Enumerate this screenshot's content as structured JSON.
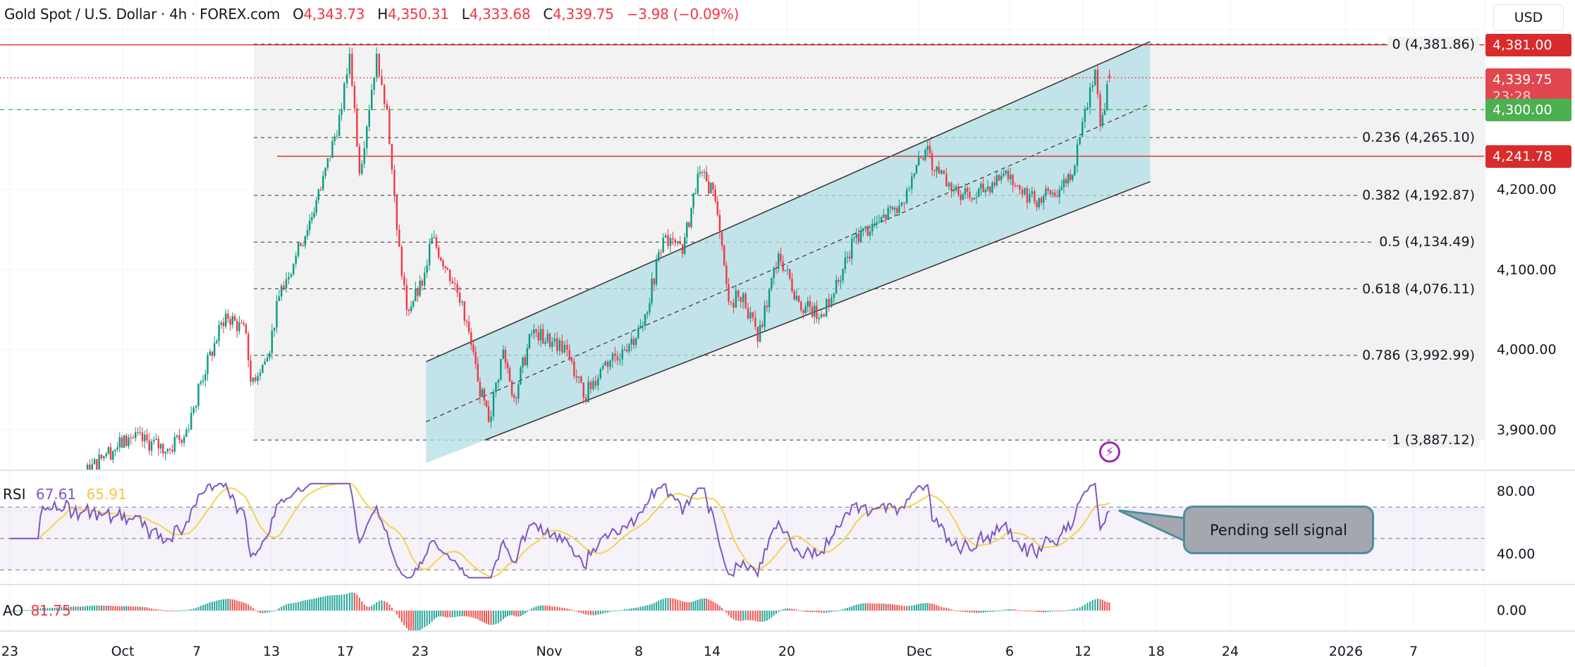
{
  "header": {
    "symbol": "Gold Spot / U.S. Dollar · 4h · FOREX.com",
    "open_label": "O",
    "open": "4,343.73",
    "high_label": "H",
    "high": "4,350.31",
    "low_label": "L",
    "low": "4,333.68",
    "close_label": "C",
    "close": "4,339.75",
    "change": "−3.98 (−0.09%)"
  },
  "currency_button": "USD",
  "colors": {
    "up": "#089981",
    "down": "#f23645",
    "rsi": "#7e57c2",
    "rsi_ma": "#f5d34f",
    "channel": "#b2dde6",
    "fib_bg": "#f2f2f2",
    "tag_red": "#d92b2b",
    "tag_last": "#e0474f",
    "tag_green": "#4caf50"
  },
  "price_axis": {
    "labels": [
      {
        "value": 4200,
        "text": "4,200.00"
      },
      {
        "value": 4100,
        "text": "4,100.00"
      },
      {
        "value": 4000,
        "text": "4,000.00"
      },
      {
        "value": 3900,
        "text": "3,900.00"
      }
    ],
    "tags": [
      {
        "value": 4381.0,
        "text": "4,381.00",
        "color": "#d92b2b"
      },
      {
        "value": 4339.75,
        "text": "4,339.75",
        "countdown": "23:28",
        "color": "#e0474f"
      },
      {
        "value": 4300.0,
        "text": "4,300.00",
        "color": "#4caf50"
      },
      {
        "value": 4241.78,
        "text": "4,241.78",
        "color": "#d92b2b"
      }
    ]
  },
  "fib_levels": [
    {
      "ratio": "0",
      "price": 4381.86,
      "text": "0 (4,381.86)"
    },
    {
      "ratio": "0.236",
      "price": 4265.1,
      "text": "0.236 (4,265.10)"
    },
    {
      "ratio": "0.382",
      "price": 4192.87,
      "text": "0.382 (4,192.87)"
    },
    {
      "ratio": "0.5",
      "price": 4134.49,
      "text": "0.5 (4,134.49)"
    },
    {
      "ratio": "0.618",
      "price": 4076.11,
      "text": "0.618 (4,076.11)"
    },
    {
      "ratio": "0.786",
      "price": 3992.99,
      "text": "0.786 (3,992.99)"
    },
    {
      "ratio": "1",
      "price": 3887.12,
      "text": "1 (3,887.12)"
    }
  ],
  "horizontal_lines": [
    {
      "price": 4381.0,
      "style": "solid",
      "color": "#d92b2b"
    },
    {
      "price": 4241.78,
      "style": "solid",
      "color": "#d92b2b"
    },
    {
      "price": 4339.75,
      "style": "dotted",
      "color": "#f23645"
    },
    {
      "price": 4300.0,
      "style": "dashed",
      "color": "#4caf50"
    }
  ],
  "chart_data": {
    "type": "candlestick",
    "title": "Gold Spot / U.S. Dollar · 4h · FOREX.com",
    "ylim": [
      3788,
      4440
    ],
    "grid": true,
    "price_path": [
      [
        "2025-09-22T16:00",
        3750
      ],
      [
        "2025-09-29T20:00",
        3870
      ],
      [
        "2025-10-01T16:00",
        3890
      ],
      [
        "2025-10-04T20:00",
        3875
      ],
      [
        "2025-10-06T04:00",
        3900
      ],
      [
        "2025-10-07T08:00",
        3960
      ],
      [
        "2025-10-09T08:00",
        4045
      ],
      [
        "2025-10-10T23:00",
        4020
      ],
      [
        "2025-10-11T08:00",
        3960
      ],
      [
        "2025-10-12T16:00",
        3990
      ],
      [
        "2025-10-13T13:00",
        4080
      ],
      [
        "2025-10-14T14:00",
        4130
      ],
      [
        "2025-10-15T16:00",
        4200
      ],
      [
        "2025-10-16T19:00",
        4300
      ],
      [
        "2025-10-17T08:00",
        4370
      ],
      [
        "2025-10-18T03:00",
        4220
      ],
      [
        "2025-10-19T12:00",
        4370
      ],
      [
        "2025-10-20T08:00",
        4300
      ],
      [
        "2025-10-21T03:00",
        4150
      ],
      [
        "2025-10-21T22:00",
        4050
      ],
      [
        "2025-10-23T04:00",
        4080
      ],
      [
        "2025-10-24T00:00",
        4140
      ],
      [
        "2025-10-25T08:00",
        4100
      ],
      [
        "2025-10-26T14:00",
        4060
      ],
      [
        "2025-10-27T22:00",
        3960
      ],
      [
        "2025-10-28T20:00",
        3910
      ],
      [
        "2025-10-30T02:00",
        4000
      ],
      [
        "2025-10-31T00:00",
        3940
      ],
      [
        "2025-11-01T12:00",
        4020
      ],
      [
        "2025-11-03T04:00",
        4010
      ],
      [
        "2025-11-04T00:00",
        4000
      ],
      [
        "2025-11-04T22:00",
        3940
      ],
      [
        "2025-11-06T00:00",
        3980
      ],
      [
        "2025-11-07T02:00",
        4000
      ],
      [
        "2025-11-08T08:00",
        4030
      ],
      [
        "2025-11-10T00:00",
        4140
      ],
      [
        "2025-11-11T14:00",
        4120
      ],
      [
        "2025-11-12T20:00",
        4220
      ],
      [
        "2025-11-14T02:00",
        4200
      ],
      [
        "2025-11-15T08:00",
        4060
      ],
      [
        "2025-11-16T12:00",
        4070
      ],
      [
        "2025-11-17T16:00",
        4010
      ],
      [
        "2025-11-19T08:00",
        4120
      ],
      [
        "2025-11-21T00:00",
        4060
      ],
      [
        "2025-11-22T16:00",
        4040
      ],
      [
        "2025-11-23T22:00",
        4070
      ],
      [
        "2025-11-25T14:00",
        4140
      ],
      [
        "2025-11-27T16:00",
        4160
      ],
      [
        "2025-11-29T08:00",
        4180
      ],
      [
        "2025-11-30T14:00",
        4220
      ],
      [
        "2025-12-01T08:00",
        4250
      ],
      [
        "2025-12-02T02:00",
        4220
      ],
      [
        "2025-12-02T22:00",
        4200
      ],
      [
        "2025-12-04T01:00",
        4190
      ],
      [
        "2025-12-05T16:00",
        4220
      ],
      [
        "2025-12-06T20:00",
        4200
      ],
      [
        "2025-12-08T01:00",
        4185
      ],
      [
        "2025-12-10T02:00",
        4200
      ],
      [
        "2025-12-11T08:00",
        4230
      ],
      [
        "2025-12-12T04:00",
        4300
      ],
      [
        "2025-12-13T00:00",
        4350
      ],
      [
        "2025-12-13T10:00",
        4280
      ],
      [
        "2025-12-14T04:00",
        4340
      ]
    ],
    "channel": {
      "upper": [
        [
          "2025-10-23T12:00",
          3985
        ],
        [
          "2025-12-17T12:00",
          4385
        ]
      ],
      "middle": [
        [
          "2025-10-23T12:00",
          3910
        ],
        [
          "2025-12-17T12:00",
          4307
        ]
      ],
      "lower": [
        [
          "2025-10-28T12:00",
          3887
        ],
        [
          "2025-12-17T12:00",
          4210
        ]
      ]
    },
    "x_ticks": [
      "23",
      "Oct",
      "7",
      "13",
      "17",
      "23",
      "Nov",
      "8",
      "14",
      "20",
      "Dec",
      "6",
      "12",
      "18",
      "24",
      "2026",
      "7"
    ],
    "x_tick_dates": [
      "2025-09-23",
      "2025-10-01",
      "2025-10-07",
      "2025-10-13",
      "2025-10-17",
      "2025-10-23",
      "2025-11-03",
      "2025-11-08",
      "2025-11-14",
      "2025-11-20",
      "2025-12-01",
      "2025-12-06",
      "2025-12-12",
      "2025-12-18",
      "2025-12-24",
      "2026-01-01",
      "2026-01-07"
    ]
  },
  "rsi": {
    "label": "RSI",
    "value": "67.61",
    "ma_value": "65.91",
    "axis_labels": [
      {
        "value": 80,
        "text": "80.00"
      },
      {
        "value": 40,
        "text": "40.00"
      }
    ],
    "bands": [
      70,
      50,
      30
    ]
  },
  "ao": {
    "label": "AO",
    "value": "81.75",
    "axis_labels": [
      {
        "value": 0,
        "text": "0.00"
      }
    ]
  },
  "callout": {
    "text": "Pending sell signal"
  },
  "alert_icon": "lightning-icon"
}
